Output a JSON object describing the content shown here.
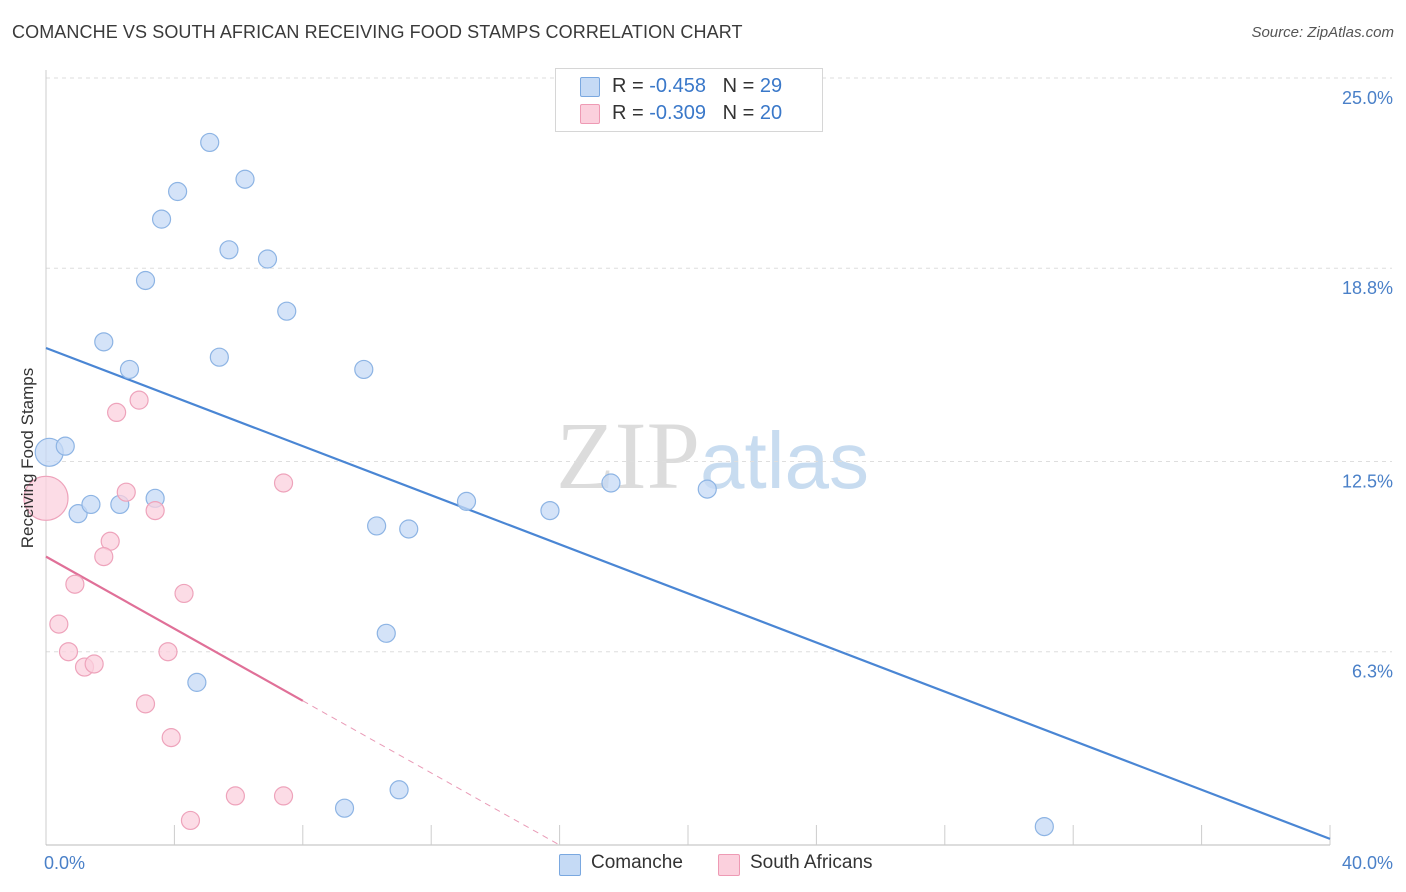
{
  "title": "COMANCHE VS SOUTH AFRICAN RECEIVING FOOD STAMPS CORRELATION CHART",
  "source": "Source: ZipAtlas.com",
  "watermark": {
    "zip": "ZIP",
    "atlas": "atlas"
  },
  "legend_stats": [
    {
      "r_label": "R = ",
      "r_value": "-0.458",
      "n_label": "N = ",
      "n_value": "29",
      "color": "#a9c8f0"
    },
    {
      "r_label": "R = ",
      "r_value": "-0.309",
      "n_label": "N = ",
      "n_value": "20",
      "color": "#f7b6c8"
    }
  ],
  "chart_data": {
    "type": "scatter",
    "title": "COMANCHE VS SOUTH AFRICAN RECEIVING FOOD STAMPS CORRELATION CHART",
    "xlabel": "",
    "ylabel": "Receiving Food Stamps",
    "xlim": [
      0,
      40
    ],
    "ylim": [
      0,
      25
    ],
    "x_tick_labels": [
      "0.0%",
      "40.0%"
    ],
    "y_ticks": [
      6.3,
      12.5,
      18.8,
      25.0
    ],
    "y_tick_labels": [
      "6.3%",
      "12.5%",
      "18.8%",
      "25.0%"
    ],
    "grid": true,
    "series": [
      {
        "name": "Comanche",
        "color": "#4a86d4",
        "fill": "#c5daf5",
        "points": [
          [
            0.1,
            12.8,
            14
          ],
          [
            0.6,
            13.0,
            9
          ],
          [
            1.8,
            16.4,
            9
          ],
          [
            2.6,
            15.5,
            9
          ],
          [
            3.1,
            18.4,
            9
          ],
          [
            3.6,
            20.4,
            9
          ],
          [
            4.1,
            21.3,
            9
          ],
          [
            5.1,
            22.9,
            9
          ],
          [
            5.4,
            15.9,
            9
          ],
          [
            5.7,
            19.4,
            9
          ],
          [
            6.2,
            21.7,
            9
          ],
          [
            6.9,
            19.1,
            9
          ],
          [
            7.5,
            17.4,
            9
          ],
          [
            9.9,
            15.5,
            9
          ],
          [
            1.0,
            10.8,
            9
          ],
          [
            1.4,
            11.1,
            9
          ],
          [
            2.3,
            11.1,
            9
          ],
          [
            3.4,
            11.3,
            9
          ],
          [
            10.3,
            10.4,
            9
          ],
          [
            11.3,
            10.3,
            9
          ],
          [
            13.1,
            11.2,
            9
          ],
          [
            15.7,
            10.9,
            9
          ],
          [
            17.6,
            11.8,
            9
          ],
          [
            20.6,
            11.6,
            9
          ],
          [
            10.6,
            6.9,
            9
          ],
          [
            4.7,
            5.3,
            9
          ],
          [
            11.0,
            1.8,
            9
          ],
          [
            9.3,
            1.2,
            9
          ],
          [
            31.1,
            0.6,
            9
          ]
        ],
        "trend": {
          "x": [
            0,
            40
          ],
          "y": [
            16.2,
            0.2
          ],
          "dashed_to": null
        }
      },
      {
        "name": "South Africans",
        "color": "#e07098",
        "fill": "#fbd0dd",
        "points": [
          [
            0.0,
            11.3,
            22
          ],
          [
            2.2,
            14.1,
            9
          ],
          [
            2.9,
            14.5,
            9
          ],
          [
            2.5,
            11.5,
            9
          ],
          [
            3.4,
            10.9,
            9
          ],
          [
            7.4,
            11.8,
            9
          ],
          [
            2.0,
            9.9,
            9
          ],
          [
            1.8,
            9.4,
            9
          ],
          [
            0.9,
            8.5,
            9
          ],
          [
            4.3,
            8.2,
            9
          ],
          [
            0.4,
            7.2,
            9
          ],
          [
            0.7,
            6.3,
            9
          ],
          [
            1.2,
            5.8,
            9
          ],
          [
            1.5,
            5.9,
            9
          ],
          [
            3.8,
            6.3,
            9
          ],
          [
            3.1,
            4.6,
            9
          ],
          [
            3.9,
            3.5,
            9
          ],
          [
            5.9,
            1.6,
            9
          ],
          [
            7.4,
            1.6,
            9
          ],
          [
            4.5,
            0.8,
            9
          ]
        ],
        "trend": {
          "x": [
            0,
            8
          ],
          "y": [
            9.4,
            4.7
          ],
          "dashed_to": [
            16,
            0
          ]
        }
      }
    ]
  }
}
